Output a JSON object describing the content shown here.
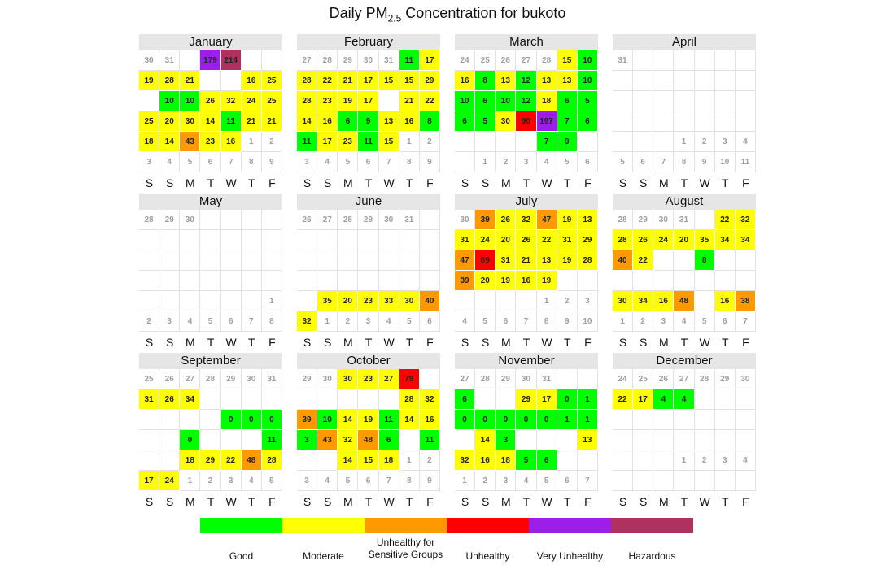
{
  "title_main": "Daily PM",
  "title_sub": "2.5",
  "title_rest": " Concentration for bukoto",
  "weekdays": [
    "S",
    "S",
    "M",
    "T",
    "W",
    "T",
    "F"
  ],
  "legend": [
    {
      "label": "Good",
      "color": "#00ff00"
    },
    {
      "label": "Moderate",
      "color": "#ffff00"
    },
    {
      "label": "Unhealthy for\nSensitive Groups",
      "color": "#ff9900"
    },
    {
      "label": "Unhealthy",
      "color": "#ff0000"
    },
    {
      "label": "Very Unhealthy",
      "color": "#9b1fe8"
    },
    {
      "label": "Hazardous",
      "color": "#b03060"
    }
  ],
  "chart_data": {
    "type": "heatmap",
    "title": "Daily PM2.5 Concentration for bukoto",
    "months": [
      {
        "name": "January",
        "rows": [
          [
            "30",
            "31",
            null,
            179,
            214,
            null,
            null
          ],
          [
            19,
            28,
            21,
            null,
            null,
            16,
            25
          ],
          [
            null,
            10,
            10,
            26,
            32,
            24,
            25
          ],
          [
            25,
            20,
            30,
            14,
            11,
            21,
            21
          ],
          [
            18,
            14,
            43,
            23,
            16,
            "1",
            "2"
          ],
          [
            "3",
            "4",
            "5",
            "6",
            "7",
            "8",
            "9"
          ]
        ]
      },
      {
        "name": "February",
        "rows": [
          [
            "27",
            "28",
            "29",
            "30",
            "31",
            11,
            17
          ],
          [
            28,
            22,
            21,
            17,
            15,
            15,
            29
          ],
          [
            28,
            23,
            19,
            17,
            null,
            21,
            22
          ],
          [
            14,
            16,
            6,
            9,
            13,
            16,
            8
          ],
          [
            11,
            17,
            23,
            11,
            15,
            "1",
            "2"
          ],
          [
            "3",
            "4",
            "5",
            "6",
            "7",
            "8",
            "9"
          ]
        ]
      },
      {
        "name": "March",
        "rows": [
          [
            "24",
            "25",
            "26",
            "27",
            "28",
            15,
            10
          ],
          [
            16,
            8,
            13,
            12,
            13,
            13,
            10
          ],
          [
            10,
            6,
            10,
            12,
            18,
            6,
            5
          ],
          [
            6,
            5,
            30,
            90,
            197,
            7,
            6
          ],
          [
            null,
            null,
            null,
            null,
            7,
            9,
            null
          ],
          [
            null,
            "1",
            "2",
            "3",
            "4",
            "5",
            "6"
          ]
        ]
      },
      {
        "name": "April",
        "rows": [
          [
            "31",
            null,
            null,
            null,
            null,
            null,
            null
          ],
          [
            null,
            null,
            null,
            null,
            null,
            null,
            null
          ],
          [
            null,
            null,
            null,
            null,
            null,
            null,
            null
          ],
          [
            null,
            null,
            null,
            null,
            null,
            null,
            null
          ],
          [
            null,
            null,
            null,
            "1",
            "2",
            "3",
            "4"
          ],
          [
            "5",
            "6",
            "7",
            "8",
            "9",
            "10",
            "11"
          ]
        ]
      },
      {
        "name": "May",
        "rows": [
          [
            "28",
            "29",
            "30",
            null,
            null,
            null,
            null
          ],
          [
            null,
            null,
            null,
            null,
            null,
            null,
            null
          ],
          [
            null,
            null,
            null,
            null,
            null,
            null,
            null
          ],
          [
            null,
            null,
            null,
            null,
            null,
            null,
            null
          ],
          [
            null,
            null,
            null,
            null,
            null,
            null,
            "1"
          ],
          [
            "2",
            "3",
            "4",
            "5",
            "6",
            "7",
            "8"
          ]
        ]
      },
      {
        "name": "June",
        "rows": [
          [
            "26",
            "27",
            "28",
            "29",
            "30",
            "31",
            null
          ],
          [
            null,
            null,
            null,
            null,
            null,
            null,
            null
          ],
          [
            null,
            null,
            null,
            null,
            null,
            null,
            null
          ],
          [
            null,
            null,
            null,
            null,
            null,
            null,
            null
          ],
          [
            null,
            35,
            20,
            23,
            33,
            30,
            40
          ],
          [
            32,
            "1",
            "2",
            "3",
            "4",
            "5",
            "6"
          ]
        ]
      },
      {
        "name": "July",
        "rows": [
          [
            "30",
            39,
            26,
            32,
            47,
            19,
            13
          ],
          [
            31,
            24,
            20,
            26,
            22,
            31,
            29
          ],
          [
            47,
            89,
            31,
            21,
            13,
            19,
            28
          ],
          [
            39,
            20,
            19,
            16,
            19,
            null,
            null
          ],
          [
            null,
            null,
            null,
            null,
            "1",
            "2",
            "3"
          ],
          [
            "4",
            "5",
            "6",
            "7",
            "8",
            "9",
            "10"
          ]
        ]
      },
      {
        "name": "August",
        "rows": [
          [
            "28",
            "29",
            "30",
            "31",
            null,
            22,
            32
          ],
          [
            28,
            26,
            24,
            20,
            35,
            34,
            34
          ],
          [
            40,
            22,
            null,
            null,
            8,
            null,
            null
          ],
          [
            null,
            null,
            null,
            null,
            null,
            null,
            null
          ],
          [
            30,
            34,
            16,
            48,
            null,
            16,
            38
          ],
          [
            "1",
            "2",
            "3",
            "4",
            "5",
            "6",
            "7"
          ]
        ]
      },
      {
        "name": "September",
        "rows": [
          [
            "25",
            "26",
            "27",
            "28",
            "29",
            "30",
            "31"
          ],
          [
            31,
            26,
            34,
            null,
            null,
            null,
            null
          ],
          [
            null,
            null,
            null,
            null,
            0,
            0,
            0
          ],
          [
            null,
            null,
            0,
            null,
            null,
            null,
            11
          ],
          [
            null,
            null,
            18,
            29,
            22,
            48,
            28
          ],
          [
            17,
            24,
            "1",
            "2",
            "3",
            "4",
            "5"
          ]
        ]
      },
      {
        "name": "October",
        "rows": [
          [
            "29",
            "30",
            30,
            23,
            27,
            79,
            null
          ],
          [
            null,
            null,
            null,
            null,
            null,
            28,
            32
          ],
          [
            39,
            10,
            14,
            19,
            11,
            14,
            16
          ],
          [
            3,
            43,
            32,
            48,
            6,
            null,
            11
          ],
          [
            null,
            null,
            14,
            15,
            18,
            "1",
            "2"
          ],
          [
            "3",
            "4",
            "5",
            "6",
            "7",
            "8",
            "9"
          ]
        ]
      },
      {
        "name": "November",
        "rows": [
          [
            "27",
            "28",
            "29",
            "30",
            "31",
            null,
            null
          ],
          [
            6,
            null,
            null,
            29,
            17,
            0,
            1
          ],
          [
            0,
            0,
            0,
            0,
            0,
            1,
            1
          ],
          [
            null,
            14,
            3,
            null,
            null,
            null,
            13
          ],
          [
            32,
            16,
            18,
            5,
            6,
            null,
            null
          ],
          [
            "1",
            "2",
            "3",
            "4",
            "5",
            "6",
            "7"
          ]
        ]
      },
      {
        "name": "December",
        "rows": [
          [
            "24",
            "25",
            "26",
            "27",
            "28",
            "29",
            "30"
          ],
          [
            22,
            17,
            4,
            4,
            null,
            null,
            null
          ],
          [
            null,
            null,
            null,
            null,
            null,
            null,
            null
          ],
          [
            null,
            null,
            null,
            null,
            null,
            null,
            null
          ],
          [
            null,
            null,
            null,
            "1",
            "2",
            "3",
            "4"
          ],
          [
            null,
            null,
            null,
            null,
            null,
            null,
            null
          ]
        ]
      }
    ],
    "categories": [
      {
        "label": "Good",
        "max": 12
      },
      {
        "label": "Moderate",
        "max": 35
      },
      {
        "label": "Unhealthy for Sensitive Groups",
        "max": 55
      },
      {
        "label": "Unhealthy",
        "max": 150
      },
      {
        "label": "Very Unhealthy",
        "max": 200
      },
      {
        "label": "Hazardous",
        "max": null
      }
    ]
  }
}
